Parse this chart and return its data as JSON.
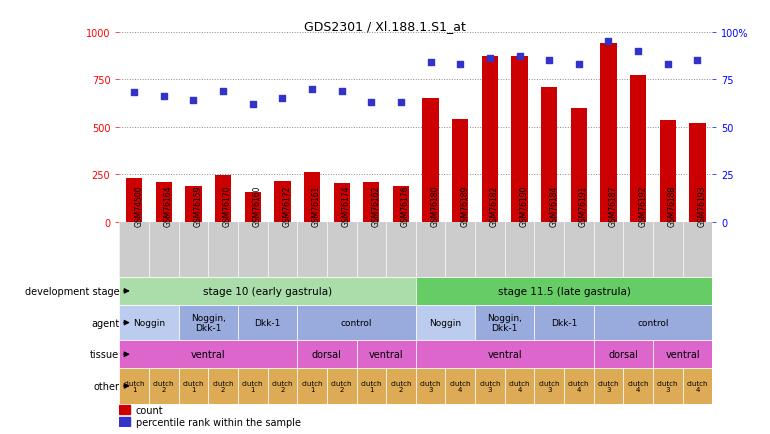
{
  "title": "GDS2301 / Xl.188.1.S1_at",
  "samples": [
    "GSM74500",
    "GSM76164",
    "GSM76159",
    "GSM76170",
    "GSM76160",
    "GSM76172",
    "GSM76161",
    "GSM76174",
    "GSM76162",
    "GSM76176",
    "GSM76180",
    "GSM76189",
    "GSM76182",
    "GSM76190",
    "GSM76184",
    "GSM76191",
    "GSM76187",
    "GSM76192",
    "GSM76188",
    "GSM76193"
  ],
  "counts": [
    230,
    210,
    185,
    245,
    155,
    215,
    260,
    205,
    210,
    185,
    650,
    540,
    870,
    870,
    710,
    600,
    940,
    770,
    535,
    520
  ],
  "percentiles": [
    68,
    66,
    64,
    69,
    62,
    65,
    70,
    69,
    63,
    63,
    84,
    83,
    86,
    87,
    85,
    83,
    95,
    90,
    83,
    85
  ],
  "bar_color": "#cc0000",
  "dot_color": "#3333cc",
  "ylim_left": [
    0,
    1000
  ],
  "ylim_right": [
    0,
    100
  ],
  "yticks_left": [
    0,
    250,
    500,
    750,
    1000
  ],
  "yticks_right": [
    0,
    25,
    50,
    75,
    100
  ],
  "development_stage_groups": [
    {
      "label": "stage 10 (early gastrula)",
      "start": 0,
      "end": 10,
      "color": "#aaddaa"
    },
    {
      "label": "stage 11.5 (late gastrula)",
      "start": 10,
      "end": 20,
      "color": "#66cc66"
    }
  ],
  "agent_groups": [
    {
      "label": "Noggin",
      "start": 0,
      "end": 2,
      "color": "#bbccee"
    },
    {
      "label": "Noggin,\nDkk-1",
      "start": 2,
      "end": 4,
      "color": "#99aadd"
    },
    {
      "label": "Dkk-1",
      "start": 4,
      "end": 6,
      "color": "#99aadd"
    },
    {
      "label": "control",
      "start": 6,
      "end": 10,
      "color": "#99aadd"
    },
    {
      "label": "Noggin",
      "start": 10,
      "end": 12,
      "color": "#bbccee"
    },
    {
      "label": "Noggin,\nDkk-1",
      "start": 12,
      "end": 14,
      "color": "#99aadd"
    },
    {
      "label": "Dkk-1",
      "start": 14,
      "end": 16,
      "color": "#99aadd"
    },
    {
      "label": "control",
      "start": 16,
      "end": 20,
      "color": "#99aadd"
    }
  ],
  "tissue_groups": [
    {
      "label": "ventral",
      "start": 0,
      "end": 6,
      "color": "#dd66cc"
    },
    {
      "label": "dorsal",
      "start": 6,
      "end": 8,
      "color": "#dd66cc"
    },
    {
      "label": "ventral",
      "start": 8,
      "end": 10,
      "color": "#dd66cc"
    },
    {
      "label": "ventral",
      "start": 10,
      "end": 16,
      "color": "#dd66cc"
    },
    {
      "label": "dorsal",
      "start": 16,
      "end": 18,
      "color": "#dd66cc"
    },
    {
      "label": "ventral",
      "start": 18,
      "end": 20,
      "color": "#dd66cc"
    }
  ],
  "other_groups": [
    {
      "label": "clutch\n1",
      "start": 0,
      "end": 1
    },
    {
      "label": "clutch\n2",
      "start": 1,
      "end": 2
    },
    {
      "label": "clutch\n1",
      "start": 2,
      "end": 3
    },
    {
      "label": "clutch\n2",
      "start": 3,
      "end": 4
    },
    {
      "label": "clutch\n1",
      "start": 4,
      "end": 5
    },
    {
      "label": "clutch\n2",
      "start": 5,
      "end": 6
    },
    {
      "label": "clutch\n1",
      "start": 6,
      "end": 7
    },
    {
      "label": "clutch\n2",
      "start": 7,
      "end": 8
    },
    {
      "label": "clutch\n1",
      "start": 8,
      "end": 9
    },
    {
      "label": "clutch\n2",
      "start": 9,
      "end": 10
    },
    {
      "label": "clutch\n3",
      "start": 10,
      "end": 11
    },
    {
      "label": "clutch\n4",
      "start": 11,
      "end": 12
    },
    {
      "label": "clutch\n3",
      "start": 12,
      "end": 13
    },
    {
      "label": "clutch\n4",
      "start": 13,
      "end": 14
    },
    {
      "label": "clutch\n3",
      "start": 14,
      "end": 15
    },
    {
      "label": "clutch\n4",
      "start": 15,
      "end": 16
    },
    {
      "label": "clutch\n3",
      "start": 16,
      "end": 17
    },
    {
      "label": "clutch\n4",
      "start": 17,
      "end": 18
    },
    {
      "label": "clutch\n3",
      "start": 18,
      "end": 19
    },
    {
      "label": "clutch\n4",
      "start": 19,
      "end": 20
    }
  ],
  "other_color": "#ddaa55",
  "row_labels": [
    "development stage",
    "agent",
    "tissue",
    "other"
  ],
  "legend_count_color": "#cc0000",
  "legend_pct_color": "#3333cc",
  "bg_color": "#ffffff",
  "grid_color": "#888888",
  "xlabel_bg": "#cccccc"
}
